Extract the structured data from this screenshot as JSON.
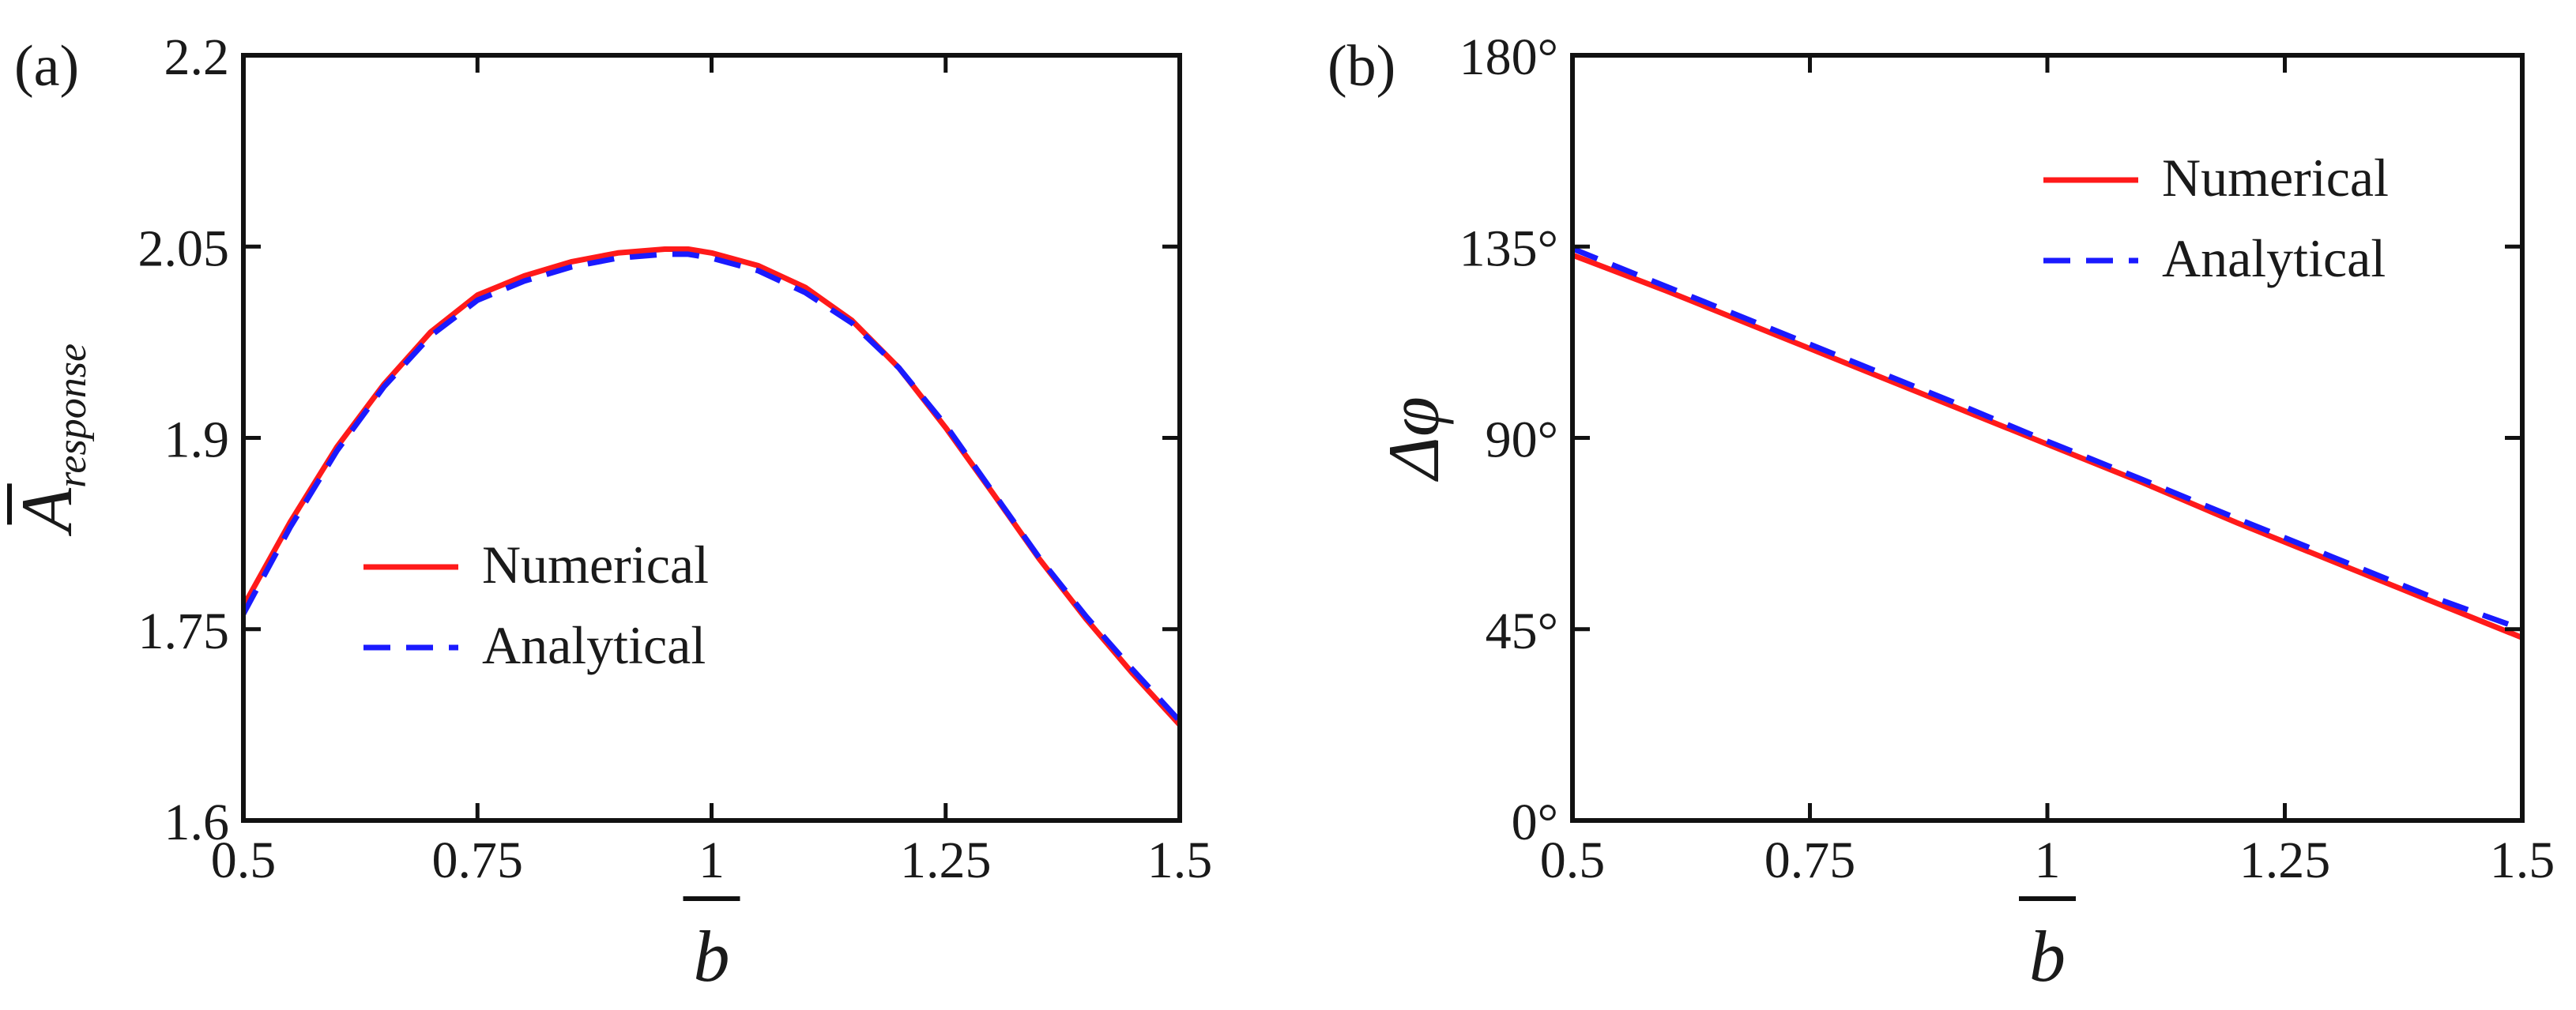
{
  "chart_data": [
    {
      "type": "line",
      "panel_label": "(a)",
      "xlabel": "b",
      "ylabel": "A",
      "ylabel_sub": "response",
      "xlim": [
        0.5,
        1.5
      ],
      "ylim": [
        1.6,
        2.2
      ],
      "x_ticks": [
        0.5,
        0.75,
        1,
        1.25,
        1.5
      ],
      "x_tick_labels": [
        "0.5",
        "0.75",
        "1",
        "1.25",
        "1.5"
      ],
      "y_ticks": [
        1.6,
        1.75,
        1.9,
        2.05,
        2.2
      ],
      "y_tick_labels": [
        "1.6",
        "1.75",
        "1.9",
        "2.05",
        "2.2"
      ],
      "grid": false,
      "legend_position": "center-left",
      "x": [
        0.5,
        0.55,
        0.6,
        0.65,
        0.7,
        0.75,
        0.8,
        0.85,
        0.9,
        0.95,
        0.975,
        1.0,
        1.05,
        1.1,
        1.15,
        1.2,
        1.25,
        1.3,
        1.35,
        1.4,
        1.45,
        1.5
      ],
      "series": [
        {
          "name": "Numerical",
          "color": "#ff1a1a",
          "style": "solid",
          "values": [
            1.768,
            1.834,
            1.893,
            1.942,
            1.983,
            2.012,
            2.027,
            2.038,
            2.045,
            2.048,
            2.048,
            2.045,
            2.035,
            2.018,
            1.992,
            1.955,
            1.908,
            1.857,
            1.805,
            1.758,
            1.715,
            1.675
          ]
        },
        {
          "name": "Analytical",
          "color": "#1a1aff",
          "style": "dashed",
          "values": [
            1.762,
            1.83,
            1.89,
            1.94,
            1.98,
            2.008,
            2.023,
            2.034,
            2.041,
            2.044,
            2.044,
            2.041,
            2.031,
            2.014,
            1.99,
            1.955,
            1.91,
            1.858,
            1.806,
            1.76,
            1.718,
            1.678
          ]
        }
      ]
    },
    {
      "type": "line",
      "panel_label": "(b)",
      "xlabel": "b",
      "ylabel": "Δφ",
      "xlim": [
        0.5,
        1.5
      ],
      "ylim": [
        0,
        180
      ],
      "x_ticks": [
        0.5,
        0.75,
        1,
        1.25,
        1.5
      ],
      "x_tick_labels": [
        "0.5",
        "0.75",
        "1",
        "1.25",
        "1.5"
      ],
      "y_ticks": [
        0,
        45,
        90,
        135,
        180
      ],
      "y_tick_labels": [
        "0°",
        "45°",
        "90°",
        "135°",
        "180°"
      ],
      "grid": false,
      "legend_position": "top-right",
      "x": [
        0.5,
        0.6,
        0.7,
        0.8,
        0.9,
        1.0,
        1.1,
        1.2,
        1.3,
        1.4,
        1.5
      ],
      "series": [
        {
          "name": "Numerical",
          "color": "#ff1a1a",
          "style": "solid",
          "values": [
            133,
            124.5,
            115.5,
            106.5,
            97.5,
            88.5,
            79.5,
            70,
            61,
            52,
            43
          ]
        },
        {
          "name": "Analytical",
          "color": "#1a1aff",
          "style": "dashed",
          "values": [
            134.5,
            125.5,
            116.5,
            107.5,
            98.5,
            89.2,
            80.2,
            71,
            62,
            53,
            45
          ]
        }
      ]
    }
  ]
}
